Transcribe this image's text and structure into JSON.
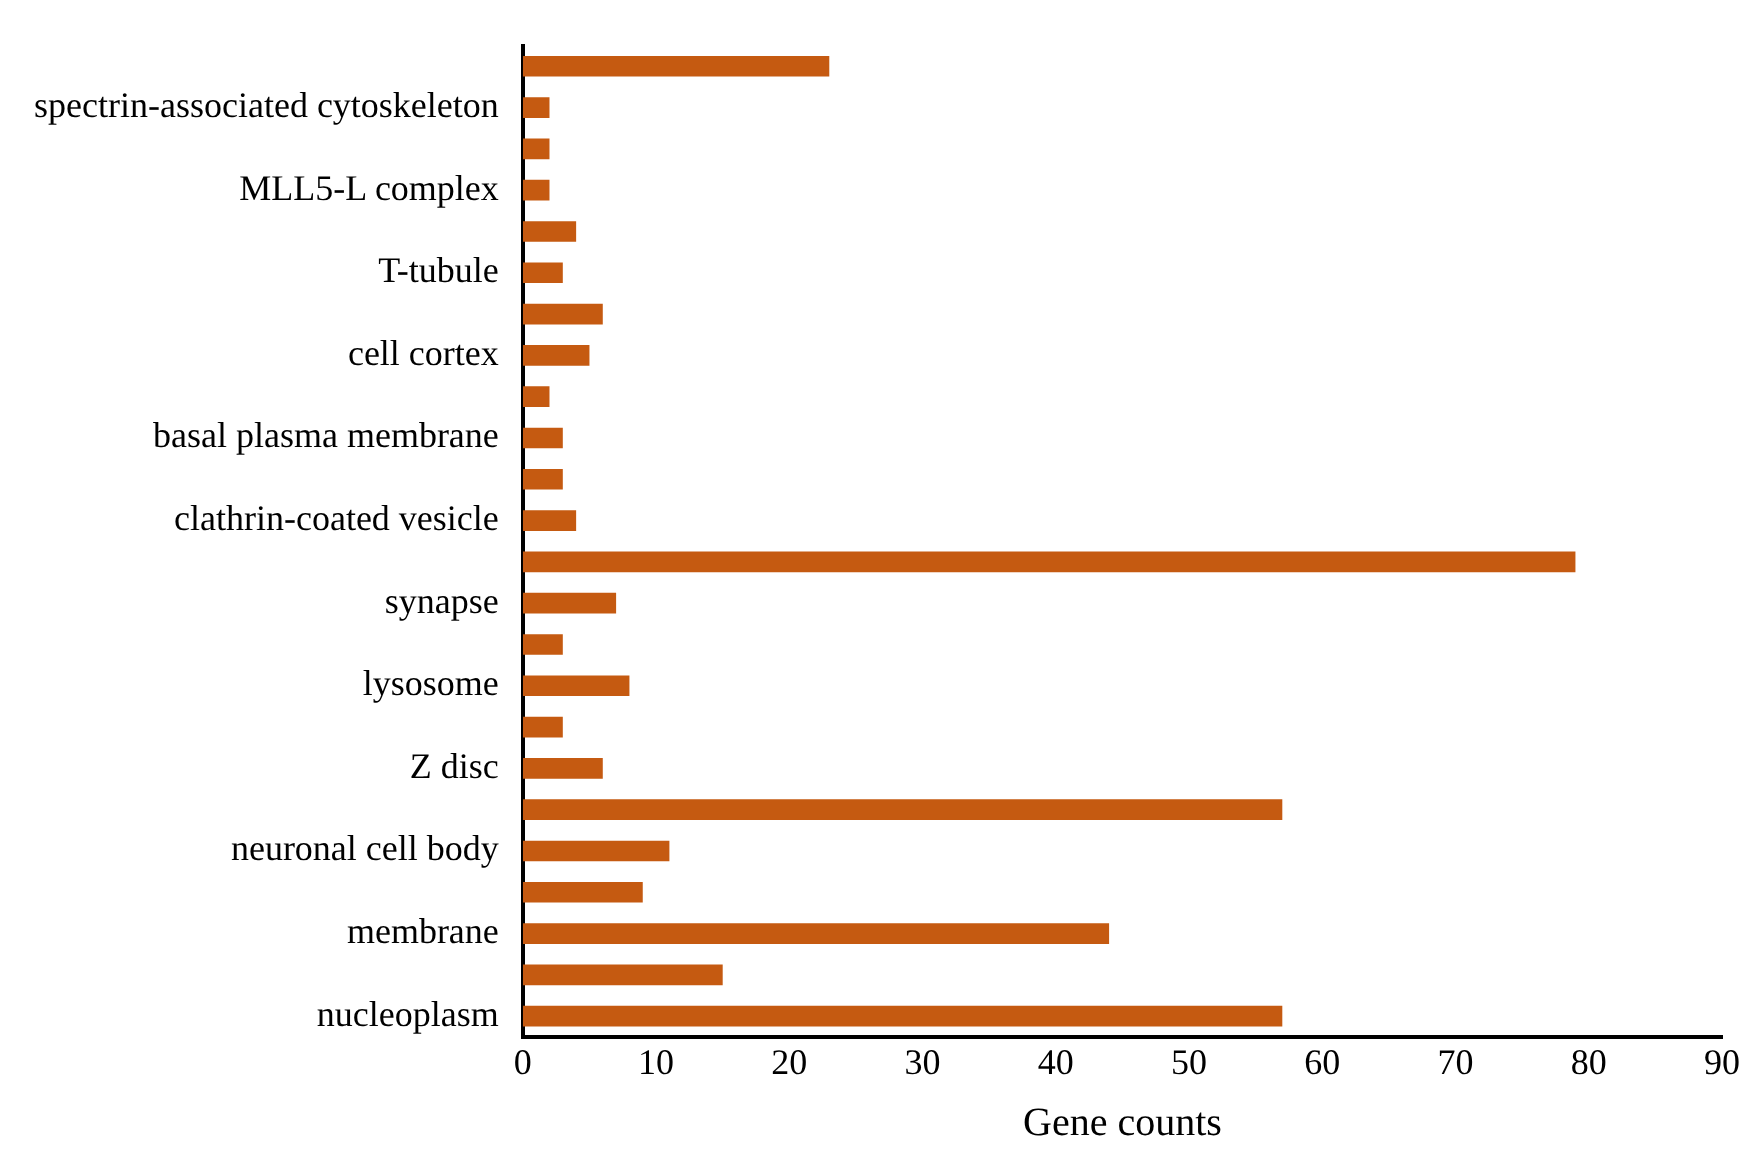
{
  "chart_data": {
    "type": "bar",
    "orientation": "horizontal",
    "xlabel": "Gene counts",
    "categories": [
      null,
      "spectrin-associated cytoskeleton",
      null,
      "MLL5-L complex",
      null,
      "T-tubule",
      null,
      "cell cortex",
      null,
      "basal plasma membrane",
      null,
      "clathrin-coated vesicle",
      null,
      "synapse",
      null,
      "lysosome",
      null,
      "Z disc",
      null,
      "neuronal cell body",
      null,
      "membrane",
      null,
      "nucleoplasm"
    ],
    "values": [
      23,
      2,
      2,
      2,
      4,
      3,
      6,
      5,
      2,
      3,
      3,
      4,
      79,
      7,
      3,
      8,
      3,
      6,
      57,
      11,
      9,
      44,
      15,
      57
    ],
    "color": "#c55a11",
    "xlim": [
      0,
      90
    ],
    "xticks": [
      0,
      10,
      20,
      30,
      40,
      50,
      60,
      70,
      80,
      90
    ],
    "grid": false,
    "legend": false
  }
}
